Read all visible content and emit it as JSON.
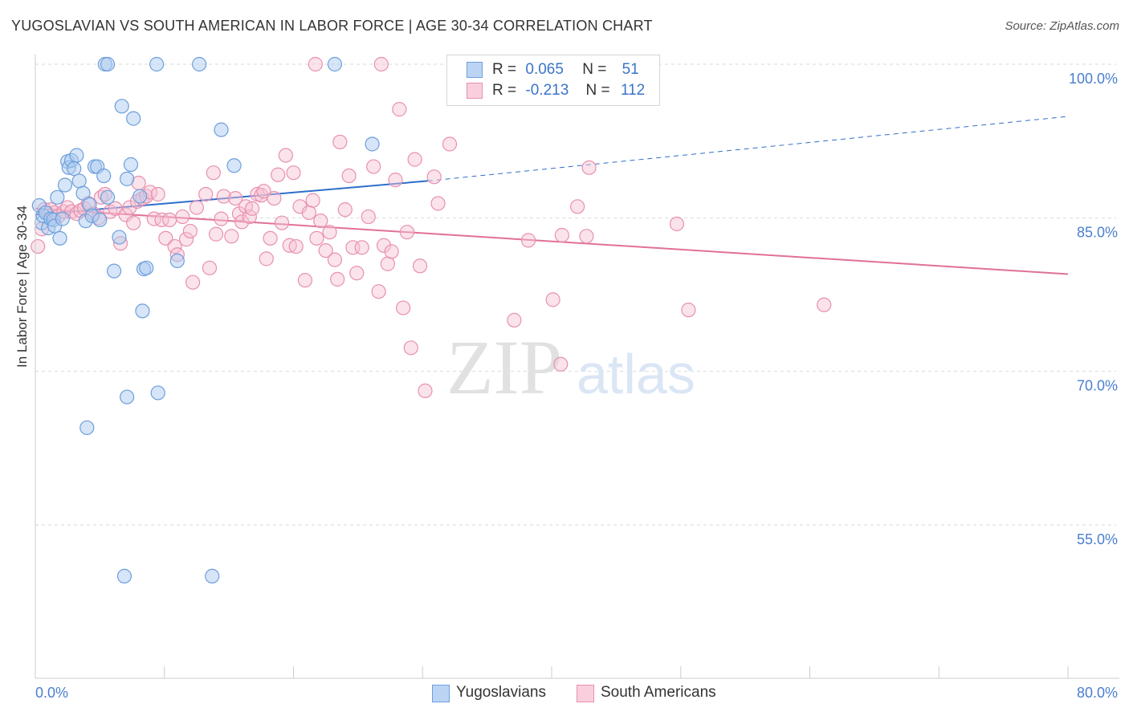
{
  "header": {
    "title": "YUGOSLAVIAN VS SOUTH AMERICAN IN LABOR FORCE | AGE 30-34 CORRELATION CHART",
    "source": "Source: ZipAtlas.com"
  },
  "legend": {
    "row1": {
      "r_label": "R =",
      "r_value": "0.065",
      "n_label": "N =",
      "n_value": "51"
    },
    "row2": {
      "r_label": "R =",
      "r_value": "-0.213",
      "n_label": "N =",
      "n_value": "112"
    }
  },
  "bottom_legend": {
    "series1": "Yugoslavians",
    "series2": "South Americans"
  },
  "watermark": {
    "part1": "ZIP",
    "part2": "atlas"
  },
  "colors": {
    "blue_fill": "#aecbf0",
    "blue_stroke": "#6d9fdc",
    "blue_line": "#2e6ec9",
    "pink_fill": "#f7c0d2",
    "pink_stroke": "#e890ae",
    "pink_line": "#e0709a",
    "tick_label": "#4a7fcf",
    "grid": "#d9d9d9"
  },
  "chart_data": {
    "type": "scatter",
    "title": "YUGOSLAVIAN VS SOUTH AMERICAN IN LABOR FORCE | AGE 30-34 CORRELATION CHART",
    "xlabel": "",
    "ylabel": "In Labor Force | Age 30-34",
    "xlim": [
      0,
      80
    ],
    "ylim": [
      39,
      101
    ],
    "x_tick_labels": [
      "0.0%",
      "80.0%"
    ],
    "y_ticks": [
      100,
      85,
      70,
      55
    ],
    "y_tick_labels": [
      "100.0%",
      "85.0%",
      "70.0%",
      "55.0%"
    ],
    "grid": true,
    "legend_position": "top-center",
    "series": [
      {
        "name": "Yugoslavians",
        "r": 0.065,
        "n": 51,
        "trend": {
          "x": [
            0,
            30.4
          ],
          "y": [
            85.3,
            88.6
          ],
          "dashed_extension": {
            "x": [
              30.4,
              80
            ],
            "y": [
              88.6,
              94.9
            ]
          }
        },
        "points": [
          [
            0.3,
            86.2
          ],
          [
            0.5,
            84.5
          ],
          [
            0.6,
            85.2
          ],
          [
            0.8,
            85.5
          ],
          [
            1.0,
            84.0
          ],
          [
            1.2,
            84.9
          ],
          [
            1.4,
            84.8
          ],
          [
            1.5,
            84.2
          ],
          [
            1.7,
            87.0
          ],
          [
            1.9,
            83.0
          ],
          [
            2.1,
            84.9
          ],
          [
            2.3,
            88.2
          ],
          [
            2.5,
            90.5
          ],
          [
            2.6,
            89.9
          ],
          [
            2.8,
            90.6
          ],
          [
            3.0,
            89.8
          ],
          [
            3.2,
            91.1
          ],
          [
            3.4,
            88.6
          ],
          [
            3.7,
            87.4
          ],
          [
            3.9,
            84.7
          ],
          [
            4.2,
            86.3
          ],
          [
            4.4,
            85.2
          ],
          [
            4.6,
            90.0
          ],
          [
            4.8,
            90.0
          ],
          [
            5.0,
            84.8
          ],
          [
            5.3,
            89.1
          ],
          [
            5.6,
            87.0
          ],
          [
            5.4,
            100.0
          ],
          [
            5.6,
            100.0
          ],
          [
            6.1,
            79.8
          ],
          [
            6.5,
            83.1
          ],
          [
            6.7,
            95.9
          ],
          [
            7.1,
            88.8
          ],
          [
            7.4,
            90.2
          ],
          [
            7.6,
            94.7
          ],
          [
            8.1,
            87.1
          ],
          [
            8.4,
            80.0
          ],
          [
            8.6,
            80.1
          ],
          [
            9.4,
            100.0
          ],
          [
            11.0,
            80.8
          ],
          [
            12.7,
            100.0
          ],
          [
            14.4,
            93.6
          ],
          [
            15.4,
            90.1
          ],
          [
            23.2,
            100.0
          ],
          [
            26.1,
            92.2
          ],
          [
            8.3,
            75.9
          ],
          [
            7.1,
            67.5
          ],
          [
            9.5,
            67.9
          ],
          [
            4.0,
            64.5
          ],
          [
            6.9,
            50.0
          ],
          [
            13.7,
            50.0
          ]
        ]
      },
      {
        "name": "South Americans",
        "r": -0.213,
        "n": 112,
        "trend": {
          "x": [
            0,
            80
          ],
          "y": [
            85.9,
            79.5
          ]
        },
        "points": [
          [
            0.2,
            82.2
          ],
          [
            0.5,
            83.9
          ],
          [
            0.7,
            85.8
          ],
          [
            1.0,
            85.4
          ],
          [
            1.2,
            85.8
          ],
          [
            1.5,
            85.5
          ],
          [
            1.8,
            85.2
          ],
          [
            2.2,
            85.6
          ],
          [
            2.5,
            86.0
          ],
          [
            2.8,
            85.6
          ],
          [
            3.2,
            85.4
          ],
          [
            3.5,
            85.7
          ],
          [
            3.8,
            85.9
          ],
          [
            4.1,
            86.4
          ],
          [
            4.5,
            85.4
          ],
          [
            4.9,
            85.0
          ],
          [
            5.1,
            87.0
          ],
          [
            5.4,
            87.3
          ],
          [
            5.8,
            85.6
          ],
          [
            6.2,
            85.9
          ],
          [
            6.6,
            82.5
          ],
          [
            7.0,
            85.3
          ],
          [
            7.3,
            86.0
          ],
          [
            7.6,
            84.5
          ],
          [
            7.9,
            86.6
          ],
          [
            8.0,
            88.4
          ],
          [
            8.3,
            86.9
          ],
          [
            8.6,
            87.1
          ],
          [
            8.9,
            87.5
          ],
          [
            9.2,
            84.9
          ],
          [
            9.5,
            87.3
          ],
          [
            9.8,
            84.8
          ],
          [
            10.1,
            83.0
          ],
          [
            10.4,
            84.8
          ],
          [
            10.8,
            82.2
          ],
          [
            11.0,
            81.4
          ],
          [
            11.4,
            85.1
          ],
          [
            11.7,
            82.9
          ],
          [
            12.0,
            83.7
          ],
          [
            12.2,
            78.7
          ],
          [
            12.5,
            86.0
          ],
          [
            13.2,
            87.3
          ],
          [
            13.5,
            80.1
          ],
          [
            13.8,
            89.4
          ],
          [
            14.0,
            83.4
          ],
          [
            14.4,
            84.9
          ],
          [
            14.6,
            87.1
          ],
          [
            15.2,
            83.2
          ],
          [
            15.5,
            86.9
          ],
          [
            15.8,
            85.4
          ],
          [
            16.0,
            84.6
          ],
          [
            16.3,
            86.1
          ],
          [
            16.6,
            85.1
          ],
          [
            16.8,
            85.9
          ],
          [
            17.2,
            87.3
          ],
          [
            17.5,
            87.2
          ],
          [
            17.7,
            87.6
          ],
          [
            17.9,
            81.0
          ],
          [
            18.2,
            83.0
          ],
          [
            18.5,
            86.9
          ],
          [
            18.8,
            89.2
          ],
          [
            19.1,
            84.5
          ],
          [
            19.4,
            91.1
          ],
          [
            19.7,
            82.3
          ],
          [
            20.0,
            89.4
          ],
          [
            20.2,
            82.2
          ],
          [
            20.5,
            86.1
          ],
          [
            20.9,
            78.9
          ],
          [
            21.2,
            85.5
          ],
          [
            21.5,
            86.7
          ],
          [
            21.8,
            83.0
          ],
          [
            22.1,
            84.7
          ],
          [
            22.5,
            81.8
          ],
          [
            22.8,
            83.6
          ],
          [
            23.2,
            80.9
          ],
          [
            23.4,
            79.0
          ],
          [
            23.6,
            92.4
          ],
          [
            24.0,
            85.8
          ],
          [
            24.3,
            89.1
          ],
          [
            24.6,
            82.1
          ],
          [
            24.9,
            79.6
          ],
          [
            25.3,
            82.1
          ],
          [
            25.8,
            85.1
          ],
          [
            26.2,
            90.0
          ],
          [
            26.6,
            77.8
          ],
          [
            27.0,
            82.3
          ],
          [
            27.3,
            80.5
          ],
          [
            27.6,
            81.7
          ],
          [
            27.9,
            88.7
          ],
          [
            28.2,
            95.6
          ],
          [
            28.5,
            76.2
          ],
          [
            28.8,
            83.6
          ],
          [
            29.1,
            72.3
          ],
          [
            29.4,
            90.7
          ],
          [
            29.8,
            80.3
          ],
          [
            30.2,
            68.1
          ],
          [
            30.9,
            89.0
          ],
          [
            31.2,
            86.4
          ],
          [
            32.1,
            92.2
          ],
          [
            21.7,
            100.0
          ],
          [
            26.8,
            100.0
          ],
          [
            37.1,
            75.0
          ],
          [
            38.2,
            82.8
          ],
          [
            40.1,
            77.0
          ],
          [
            42.0,
            86.1
          ],
          [
            40.7,
            70.7
          ],
          [
            40.8,
            83.3
          ],
          [
            42.7,
            83.2
          ],
          [
            42.9,
            89.9
          ],
          [
            49.7,
            84.4
          ],
          [
            50.6,
            76.0
          ],
          [
            61.1,
            76.5
          ]
        ]
      }
    ]
  }
}
